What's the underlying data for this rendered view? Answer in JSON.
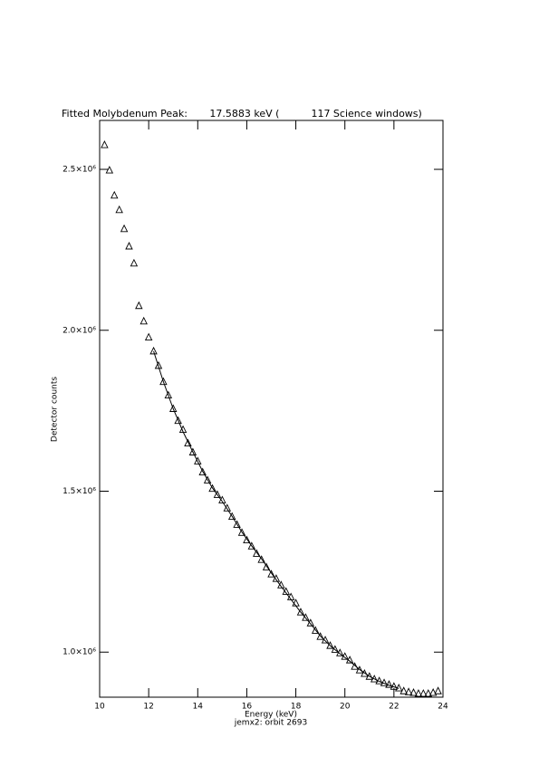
{
  "chart_data": {
    "type": "scatter",
    "title": "Fitted Molybdenum Peak:       17.5883 keV (          117 Science windows)",
    "xlabel": "Energy (keV)",
    "subtitle": "jemx2: orbit 2693",
    "ylabel": "Detector counts",
    "xlim": [
      10,
      24
    ],
    "ylim": [
      860000,
      2652000
    ],
    "xticks": [
      10,
      12,
      14,
      16,
      18,
      20,
      22,
      24
    ],
    "yticks": [
      {
        "value": 1000000,
        "label": "1.0×10⁶"
      },
      {
        "value": 1500000,
        "label": "1.5×10⁶"
      },
      {
        "value": 2000000,
        "label": "2.0×10⁶"
      },
      {
        "value": 2500000,
        "label": "2.5×10⁶"
      }
    ],
    "series": [
      {
        "type": "scatter",
        "marker": "triangle",
        "color": "#000000",
        "x": [
          10.2,
          10.4,
          10.6,
          10.8,
          11.0,
          11.2,
          11.4,
          11.6,
          11.8,
          12.0,
          12.2,
          12.4,
          12.6,
          12.8,
          13.0,
          13.2,
          13.4,
          13.6,
          13.8,
          14.0,
          14.2,
          14.4,
          14.6,
          14.8,
          15.0,
          15.2,
          15.4,
          15.6,
          15.8,
          16.0,
          16.2,
          16.4,
          16.6,
          16.8,
          17.0,
          17.2,
          17.4,
          17.6,
          17.8,
          18.0,
          18.2,
          18.4,
          18.6,
          18.8,
          19.0,
          19.2,
          19.4,
          19.6,
          19.8,
          20.0,
          20.2,
          20.4,
          20.6,
          20.8,
          21.0,
          21.2,
          21.4,
          21.6,
          21.8,
          22.0,
          22.2,
          22.4,
          22.6,
          22.8,
          23.0,
          23.2,
          23.4,
          23.6,
          23.8
        ],
        "values": [
          2576000,
          2497000,
          2419000,
          2374000,
          2315000,
          2261000,
          2208000,
          2076000,
          2028000,
          1978000,
          1935000,
          1890000,
          1840000,
          1798000,
          1756000,
          1719000,
          1691000,
          1649000,
          1621000,
          1593000,
          1559000,
          1534000,
          1508000,
          1489000,
          1472000,
          1447000,
          1421000,
          1396000,
          1371000,
          1348000,
          1329000,
          1306000,
          1287000,
          1264000,
          1242000,
          1228000,
          1208000,
          1188000,
          1171000,
          1152000,
          1124000,
          1107000,
          1090000,
          1067000,
          1048000,
          1037000,
          1020000,
          1008000,
          997000,
          986000,
          975000,
          955000,
          944000,
          933000,
          924000,
          916000,
          910000,
          904000,
          899000,
          893000,
          888000,
          879000,
          876000,
          874000,
          871000,
          871000,
          871000,
          874000,
          879000
        ]
      },
      {
        "type": "line",
        "color": "#000000",
        "x": [
          12.2,
          12.6,
          13.0,
          13.4,
          13.8,
          14.2,
          14.6,
          15.0,
          15.4,
          15.8,
          16.2,
          16.6,
          17.0,
          17.4,
          17.8,
          18.2,
          18.6,
          19.0,
          19.4,
          19.8,
          20.2,
          20.6,
          21.0,
          21.4,
          21.8,
          22.2
        ],
        "values": [
          1935000,
          1840000,
          1756000,
          1685000,
          1622000,
          1562000,
          1510000,
          1468000,
          1422000,
          1373000,
          1330000,
          1290000,
          1246000,
          1204000,
          1164000,
          1124000,
          1088000,
          1050000,
          1020000,
          995000,
          972000,
          946000,
          925000,
          909000,
          897000,
          887000
        ]
      }
    ]
  }
}
